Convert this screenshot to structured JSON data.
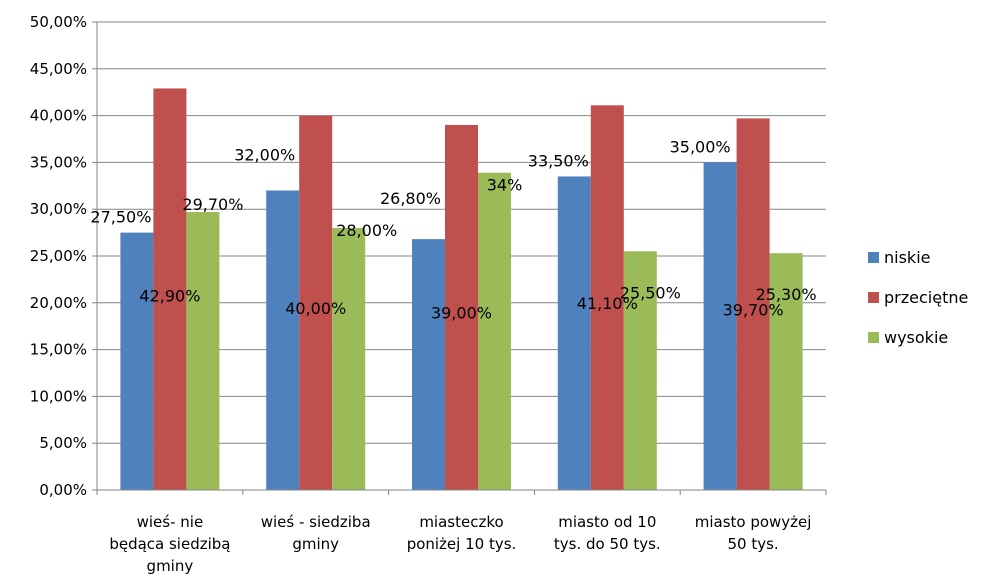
{
  "chart_data": {
    "type": "bar",
    "categories": [
      [
        "wieś- nie",
        "będąca siedzibą",
        "gminy"
      ],
      [
        "wieś - siedziba",
        "gminy"
      ],
      [
        "miasteczko",
        "poniżej 10 tys."
      ],
      [
        "miasto od 10",
        "tys. do 50 tys."
      ],
      [
        "miasto powyżej",
        "50 tys."
      ]
    ],
    "series": [
      {
        "name": "niskie",
        "color": "#4F81BD",
        "values": [
          27.5,
          32.0,
          26.8,
          33.5,
          35.0
        ],
        "labels": [
          "27,50%",
          "32,00%",
          "26,80%",
          "33,50%",
          "35,00%"
        ]
      },
      {
        "name": "przeciętne",
        "color": "#C0504D",
        "values": [
          42.9,
          40.0,
          39.0,
          41.1,
          39.7
        ],
        "labels": [
          "42,90%",
          "40,00%",
          "39,00%",
          "41,10%",
          "39,70%"
        ]
      },
      {
        "name": "wysokie",
        "color": "#9BBB59",
        "values": [
          29.7,
          28.0,
          33.9,
          25.5,
          25.3
        ],
        "labels": [
          "29,70%",
          "28,00%",
          "34%",
          "25,50%",
          "25,30%"
        ]
      }
    ],
    "ylim": [
      0,
      50
    ],
    "yticks": [
      0,
      5,
      10,
      15,
      20,
      25,
      30,
      35,
      40,
      45,
      50
    ],
    "ytick_labels": [
      "0,00%",
      "5,00%",
      "10,00%",
      "15,00%",
      "20,00%",
      "25,00%",
      "30,00%",
      "35,00%",
      "40,00%",
      "45,00%",
      "50,00%"
    ],
    "grid": true,
    "legend": "right",
    "title": "",
    "xlabel": "",
    "ylabel": ""
  }
}
